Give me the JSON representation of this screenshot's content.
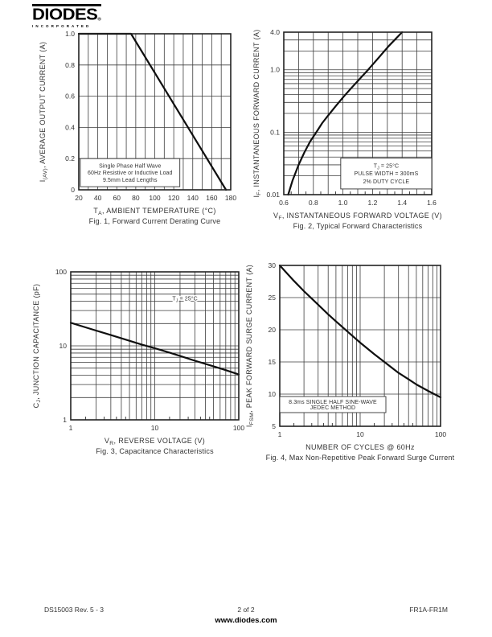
{
  "header": {
    "logo_text": "DIODES",
    "logo_reg": "®",
    "logo_subtext": "INCORPORATED"
  },
  "footer": {
    "doc_ref": "DS15003 Rev. 5 - 3",
    "page_indicator": "2 of 2",
    "website": "www.diodes.com",
    "part_number": "FR1A-FR1M"
  },
  "chart_data": [
    {
      "id": "fig1",
      "type": "line",
      "caption": "Fig. 1,  Forward Current Derating Curve",
      "xlabel": "T~A~, AMBIENT TEMPERATURE (°C)",
      "ylabel": "I~(AV)~, AVERAGE OUTPUT CURRENT (A)",
      "xscale": "linear",
      "xmin": 20,
      "xmax": 180,
      "yscale": "linear",
      "ymin": 0,
      "ymax": 1.0,
      "xticks": [
        {
          "v": 20,
          "l": "20"
        },
        {
          "v": 40,
          "l": "40"
        },
        {
          "v": 60,
          "l": "60"
        },
        {
          "v": 80,
          "l": "80"
        },
        {
          "v": 100,
          "l": "100"
        },
        {
          "v": 120,
          "l": "120"
        },
        {
          "v": 140,
          "l": "140"
        },
        {
          "v": 160,
          "l": "160"
        },
        {
          "v": 180,
          "l": "180"
        }
      ],
      "yticks": [
        {
          "v": 0,
          "l": "0"
        },
        {
          "v": 0.2,
          "l": "0.2"
        },
        {
          "v": 0.4,
          "l": "0.4"
        },
        {
          "v": 0.6,
          "l": "0.6"
        },
        {
          "v": 0.8,
          "l": "0.8"
        },
        {
          "v": 1.0,
          "l": "1.0"
        }
      ],
      "xgrid": [
        30,
        50,
        70,
        90,
        110,
        130,
        150,
        170
      ],
      "ygrid": [],
      "xedge": [],
      "series": [
        {
          "name": "derating",
          "points": [
            [
              20,
              1.0
            ],
            [
              75,
              1.0
            ],
            [
              175,
              0
            ]
          ]
        }
      ],
      "annotation": {
        "boxed": true,
        "x": 0.01,
        "y": 0.8,
        "w": 0.655,
        "h": 0.18,
        "lines": [
          "Single Phase Half Wave",
          "60Hz Resistive or Inductive Load",
          "9.5mm Lead Lengths"
        ]
      }
    },
    {
      "id": "fig2",
      "type": "line",
      "caption": "Fig. 2,  Typical Forward Characteristics",
      "xlabel": "V~F~, INSTANTANEOUS FORWARD VOLTAGE (V)",
      "ylabel": "I~F~, INSTANTANEOUS FORWARD CURRENT (A)",
      "xscale": "linear",
      "xmin": 0.6,
      "xmax": 1.6,
      "yscale": "log",
      "ymin": 0.01,
      "ymax": 4.0,
      "xticks": [
        {
          "v": 0.6,
          "l": "0.6"
        },
        {
          "v": 0.8,
          "l": "0.8"
        },
        {
          "v": 1.0,
          "l": "1.0"
        },
        {
          "v": 1.2,
          "l": "1.2"
        },
        {
          "v": 1.4,
          "l": "1.4"
        },
        {
          "v": 1.6,
          "l": "1.6"
        }
      ],
      "yticks": [
        {
          "v": 4.0,
          "l": "4.0"
        },
        {
          "v": 1.0,
          "l": "1.0"
        },
        {
          "v": 0.1,
          "l": "0.1"
        },
        {
          "v": 0.01,
          "l": "0.01"
        }
      ],
      "xgrid": [
        0.7,
        0.9,
        1.1,
        1.3,
        1.5
      ],
      "ygrid": [
        0.02,
        0.03,
        0.04,
        0.05,
        0.06,
        0.07,
        0.08,
        0.09,
        0.2,
        0.3,
        0.4,
        0.5,
        0.6,
        0.7,
        0.8,
        0.9,
        2,
        3
      ],
      "xedge": [
        0.65,
        0.75,
        0.85,
        0.95,
        1.05,
        1.15,
        1.25,
        1.35,
        1.45,
        1.55
      ],
      "series": [
        {
          "name": "forward-characteristic",
          "points": [
            [
              0.63,
              0.01
            ],
            [
              0.66,
              0.017
            ],
            [
              0.7,
              0.03
            ],
            [
              0.74,
              0.048
            ],
            [
              0.78,
              0.072
            ],
            [
              0.82,
              0.1
            ],
            [
              0.86,
              0.14
            ],
            [
              0.9,
              0.185
            ],
            [
              0.95,
              0.26
            ],
            [
              1.0,
              0.36
            ],
            [
              1.05,
              0.49
            ],
            [
              1.1,
              0.66
            ],
            [
              1.17,
              1.0
            ],
            [
              1.24,
              1.55
            ],
            [
              1.31,
              2.4
            ],
            [
              1.4,
              4.0
            ]
          ]
        }
      ],
      "annotation": {
        "boxed": true,
        "x": 0.385,
        "y": 0.775,
        "w": 0.615,
        "h": 0.19,
        "lines": [
          "T~J~ = 25°C",
          "PULSE WIDTH = 300mS",
          "2% DUTY CYCLE"
        ]
      }
    },
    {
      "id": "fig3",
      "type": "line",
      "caption": "Fig. 3,  Capacitance Characteristics",
      "xlabel": "V~R~, REVERSE VOLTAGE (V)",
      "ylabel": "C~J~, JUNCTION CAPACITANCE (pF)",
      "xscale": "log",
      "xmin": 1,
      "xmax": 100,
      "yscale": "log",
      "ymin": 1,
      "ymax": 100,
      "xticks": [
        {
          "v": 1,
          "l": "1"
        },
        {
          "v": 10,
          "l": "10"
        },
        {
          "v": 100,
          "l": "100"
        }
      ],
      "yticks": [
        {
          "v": 100,
          "l": "100"
        },
        {
          "v": 10,
          "l": "10"
        },
        {
          "v": 1,
          "l": "1"
        }
      ],
      "xgrid": [
        2,
        3,
        4,
        5,
        6,
        7,
        8,
        9,
        20,
        30,
        40,
        50,
        60,
        70,
        80,
        90
      ],
      "ygrid": [
        2,
        3,
        4,
        5,
        6,
        7,
        8,
        9,
        20,
        30,
        40,
        50,
        60,
        70,
        80,
        90
      ],
      "xedge": [
        1.5,
        2.5,
        3.5,
        4.5,
        15,
        25,
        35,
        45
      ],
      "series": [
        {
          "name": "junction-capacitance",
          "points": [
            [
              1,
              20.5
            ],
            [
              1.5,
              17.8
            ],
            [
              2,
              16.1
            ],
            [
              3,
              14.0
            ],
            [
              5,
              11.7
            ],
            [
              7,
              10.4
            ],
            [
              10,
              9.3
            ],
            [
              15,
              8.1
            ],
            [
              20,
              7.3
            ],
            [
              30,
              6.3
            ],
            [
              50,
              5.3
            ],
            [
              70,
              4.7
            ],
            [
              100,
              4.1
            ]
          ]
        }
      ],
      "annotation": {
        "boxed": false,
        "x": 0.52,
        "y": 0.13,
        "w": 0.32,
        "h": 0.1,
        "lines": [
          "T~J~ = 25°C"
        ]
      }
    },
    {
      "id": "fig4",
      "type": "line",
      "caption": "Fig. 4,  Max Non-Repetitive Peak Forward Surge Current",
      "xlabel": "NUMBER OF CYCLES @ 60Hz",
      "ylabel": "I~FSM~, PEAK FORWARD SURGE CURRENT (A)",
      "xscale": "log",
      "xmin": 1,
      "xmax": 100,
      "yscale": "linear",
      "ymin": 5,
      "ymax": 30,
      "xticks": [
        {
          "v": 1,
          "l": "1"
        },
        {
          "v": 10,
          "l": "10"
        },
        {
          "v": 100,
          "l": "100"
        }
      ],
      "yticks": [
        {
          "v": 5,
          "l": "5"
        },
        {
          "v": 10,
          "l": "10"
        },
        {
          "v": 15,
          "l": "15"
        },
        {
          "v": 20,
          "l": "20"
        },
        {
          "v": 25,
          "l": "25"
        },
        {
          "v": 30,
          "l": "30"
        }
      ],
      "xgrid": [
        2,
        3,
        4,
        5,
        6,
        7,
        8,
        9,
        20,
        30,
        40,
        50,
        60,
        70,
        80,
        90
      ],
      "ygrid": [],
      "xedge": [
        1.5,
        2.5,
        3.5,
        4.5,
        15,
        25,
        35,
        45
      ],
      "series": [
        {
          "name": "surge-current",
          "points": [
            [
              1,
              30
            ],
            [
              1.5,
              27.6
            ],
            [
              2,
              26
            ],
            [
              3,
              23.9
            ],
            [
              4,
              22.4
            ],
            [
              5,
              21.3
            ],
            [
              7,
              19.7
            ],
            [
              10,
              18
            ],
            [
              15,
              16.2
            ],
            [
              20,
              15
            ],
            [
              30,
              13.3
            ],
            [
              40,
              12.3
            ],
            [
              50,
              11.5
            ],
            [
              70,
              10.5
            ],
            [
              100,
              9.5
            ]
          ]
        }
      ],
      "annotation": {
        "boxed": true,
        "x": 0.0,
        "y": 0.815,
        "w": 0.66,
        "h": 0.1,
        "lines": [
          "8.3ms SINGLE HALF SINE-WAVE",
          "JEDEC METHOD"
        ]
      }
    }
  ]
}
